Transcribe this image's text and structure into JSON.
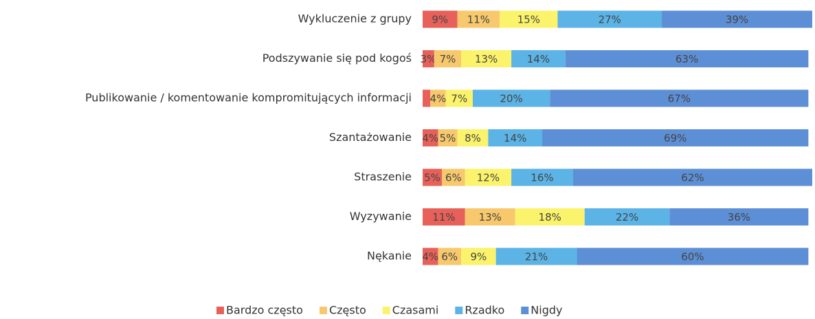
{
  "chart_data": {
    "type": "stacked_bar_horizontal",
    "categories": [
      "Wykluczenie z grupy",
      "Podszywanie się pod kogoś",
      "Publikowanie / komentowanie kompromitujących informacji",
      "Szantażowanie",
      "Straszenie",
      "Wyzywanie",
      "Nękanie"
    ],
    "series": [
      {
        "name": "Bardzo często",
        "color": "#e8605a",
        "values": [
          9,
          3,
          2,
          4,
          5,
          11,
          4
        ],
        "value_labels": [
          "9%",
          "3%",
          null,
          "4%",
          "5%",
          "11%",
          "4%"
        ]
      },
      {
        "name": "Często",
        "color": "#f7c96c",
        "values": [
          11,
          7,
          4,
          5,
          6,
          13,
          6
        ],
        "value_labels": [
          "11%",
          "7%",
          "4%",
          "5%",
          "6%",
          "13%",
          "6%"
        ]
      },
      {
        "name": "Czasami",
        "color": "#fbf36c",
        "values": [
          15,
          13,
          7,
          8,
          12,
          18,
          9
        ],
        "value_labels": [
          "15%",
          "13%",
          "7%",
          "8%",
          "12%",
          "18%",
          "9%"
        ]
      },
      {
        "name": "Rzadko",
        "color": "#5bb3e6",
        "values": [
          27,
          14,
          20,
          14,
          16,
          22,
          21
        ],
        "value_labels": [
          "27%",
          "14%",
          "20%",
          "14%",
          "16%",
          "22%",
          "21%"
        ]
      },
      {
        "name": "Nigdy",
        "color": "#5d8fd6",
        "values": [
          39,
          63,
          67,
          69,
          62,
          36,
          60
        ],
        "value_labels": [
          "39%",
          "63%",
          "67%",
          "69%",
          "62%",
          "36%",
          "60%"
        ]
      }
    ],
    "legend": "bottom"
  }
}
